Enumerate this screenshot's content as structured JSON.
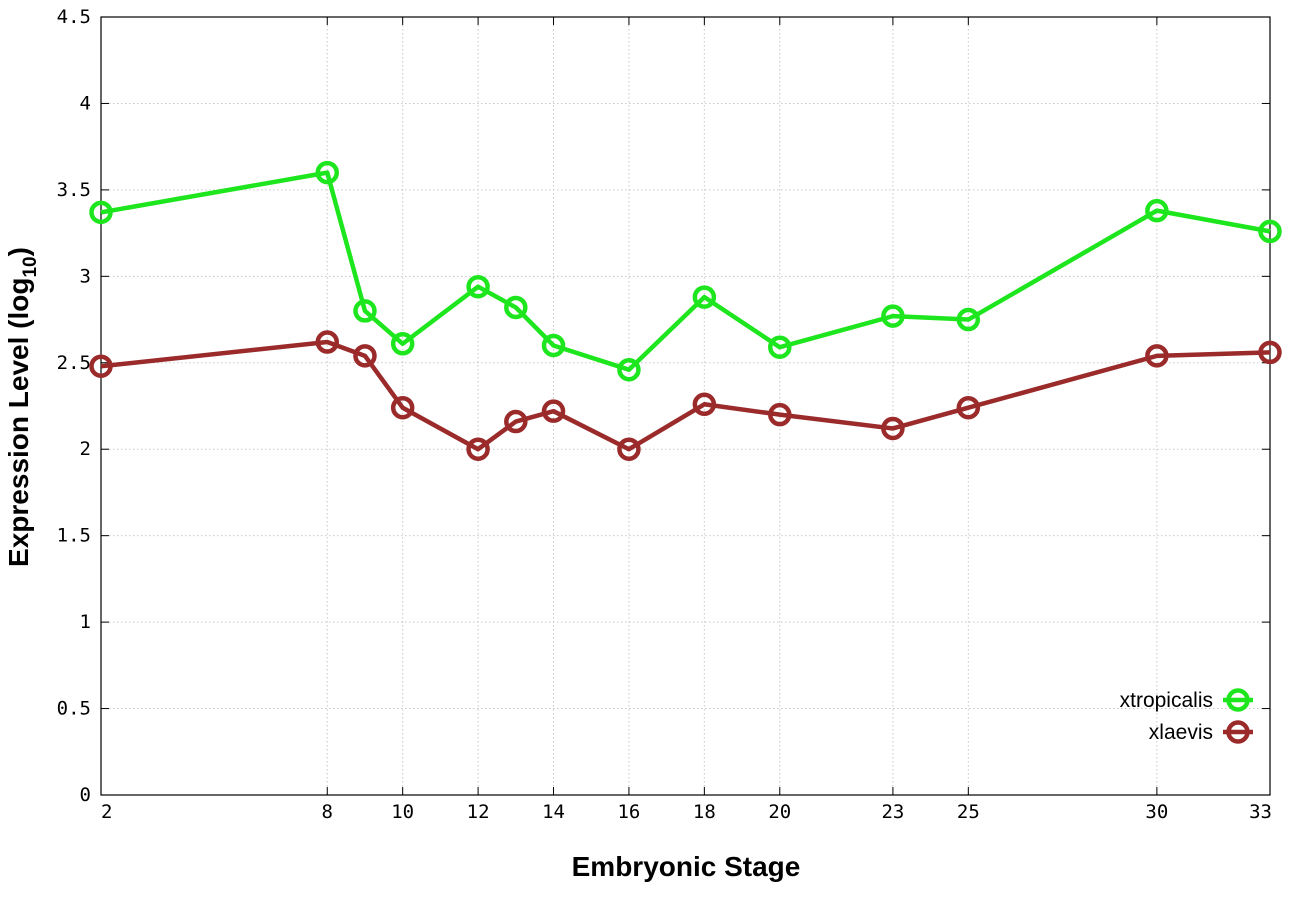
{
  "chart_data": {
    "type": "line",
    "xlabel": "Embryonic Stage",
    "ylabel_main": "Expression Level (log",
    "ylabel_sub": "10",
    "ylabel_close": ")",
    "x_ticks": [
      2,
      8,
      10,
      12,
      14,
      16,
      18,
      20,
      23,
      25,
      30,
      33
    ],
    "y_ticks": [
      "0",
      "0.5",
      "1",
      "1.5",
      "2",
      "2.5",
      "3",
      "3.5",
      "4",
      "4.5"
    ],
    "ylim": [
      0,
      4.5
    ],
    "xlim": [
      2,
      33
    ],
    "grid": true,
    "legend_position": "bottom-right",
    "series": [
      {
        "name": "xtropicalis",
        "color": "#1ee61e",
        "marker": "open-circle",
        "x": [
          2,
          8,
          9,
          10,
          12,
          13,
          14,
          16,
          18,
          20,
          23,
          25,
          30,
          33
        ],
        "y": [
          3.37,
          3.6,
          2.8,
          2.61,
          2.94,
          2.82,
          2.6,
          2.46,
          2.88,
          2.59,
          2.77,
          2.75,
          3.38,
          3.26
        ]
      },
      {
        "name": "xlaevis",
        "color": "#9b2a2a",
        "marker": "open-circle",
        "x": [
          2,
          8,
          9,
          10,
          12,
          13,
          14,
          16,
          18,
          20,
          23,
          25,
          30,
          33
        ],
        "y": [
          2.48,
          2.62,
          2.54,
          2.24,
          2.0,
          2.16,
          2.22,
          2.0,
          2.26,
          2.2,
          2.12,
          2.24,
          2.54,
          2.56
        ]
      }
    ]
  }
}
